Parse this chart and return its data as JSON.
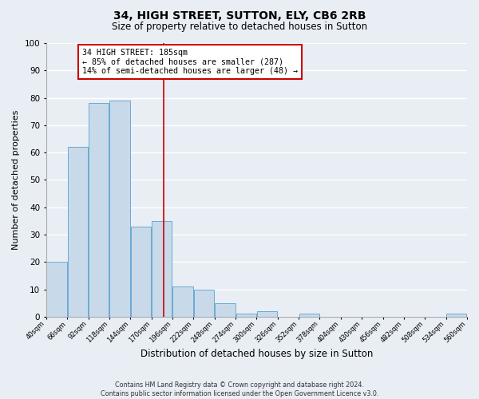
{
  "title": "34, HIGH STREET, SUTTON, ELY, CB6 2RB",
  "subtitle": "Size of property relative to detached houses in Sutton",
  "xlabel": "Distribution of detached houses by size in Sutton",
  "ylabel": "Number of detached properties",
  "bar_color": "#c8daea",
  "bar_edge_color": "#6aaad4",
  "background_color": "#e8eef4",
  "grid_color": "white",
  "bins": [
    40,
    66,
    92,
    118,
    144,
    170,
    196,
    222,
    248,
    274,
    300,
    326,
    352,
    378,
    404,
    430,
    456,
    482,
    508,
    534,
    560
  ],
  "bin_labels": [
    "40sqm",
    "66sqm",
    "92sqm",
    "118sqm",
    "144sqm",
    "170sqm",
    "196sqm",
    "222sqm",
    "248sqm",
    "274sqm",
    "300sqm",
    "326sqm",
    "352sqm",
    "378sqm",
    "404sqm",
    "430sqm",
    "456sqm",
    "482sqm",
    "508sqm",
    "534sqm",
    "560sqm"
  ],
  "values": [
    20,
    62,
    78,
    79,
    33,
    35,
    11,
    10,
    5,
    1,
    2,
    0,
    1,
    0,
    0,
    0,
    0,
    0,
    0,
    1
  ],
  "property_size": 185,
  "property_line_color": "#cc0000",
  "annotation_title": "34 HIGH STREET: 185sqm",
  "annotation_line1": "← 85% of detached houses are smaller (287)",
  "annotation_line2": "14% of semi-detached houses are larger (48) →",
  "annotation_box_color": "white",
  "annotation_box_edge": "#cc0000",
  "ylim": [
    0,
    100
  ],
  "footer1": "Contains HM Land Registry data © Crown copyright and database right 2024.",
  "footer2": "Contains public sector information licensed under the Open Government Licence v3.0."
}
